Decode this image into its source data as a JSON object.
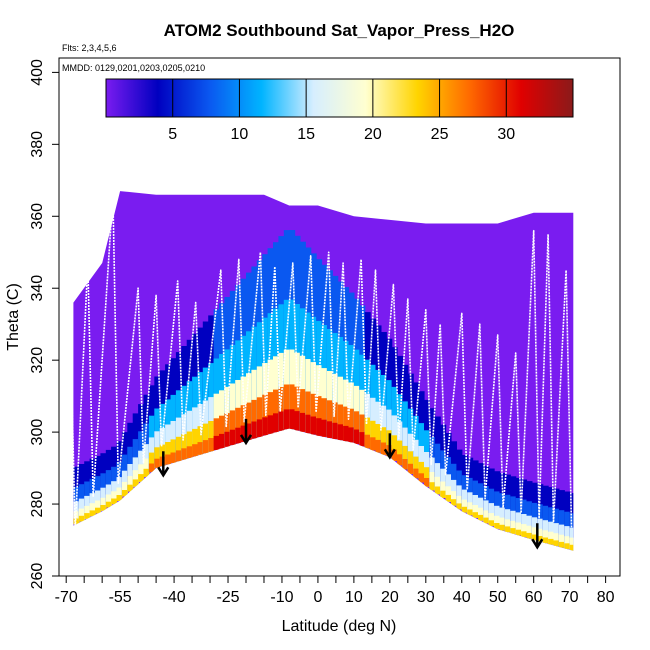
{
  "chart_data": {
    "type": "heatmap",
    "title": "ATOM2 Southbound Sat_Vapor_Press_H2O",
    "flights_label": "Flts: 2,3,4,5,6",
    "mmdd_label": "MMDD: 0129,0201,0203,0205,0210",
    "xlabel": "Latitude (deg N)",
    "ylabel": "Theta (C)",
    "xlim": [
      -72,
      84
    ],
    "ylim": [
      260,
      404
    ],
    "x_ticks": [
      -70,
      -55,
      -40,
      -25,
      -10,
      0,
      10,
      20,
      30,
      40,
      50,
      60,
      70,
      80
    ],
    "x_tick_labels": [
      "-70",
      "-55",
      "-40",
      "-25",
      "-10",
      "0",
      "10",
      "20",
      "30",
      "40",
      "50",
      "60",
      "70",
      "80"
    ],
    "y_ticks": [
      260,
      280,
      300,
      320,
      340,
      360,
      380,
      400
    ],
    "y_tick_labels": [
      "260",
      "280",
      "300",
      "320",
      "340",
      "360",
      "380",
      "400"
    ],
    "colorbar": {
      "range": [
        0,
        35
      ],
      "ticks": [
        5,
        10,
        15,
        20,
        25,
        30
      ],
      "tick_labels": [
        "5",
        "10",
        "15",
        "20",
        "25",
        "30"
      ],
      "colors": [
        "#7a1cf0",
        "#0000c0",
        "#0a58f0",
        "#00b4ff",
        "#d6eeff",
        "#ffffd0",
        "#ffd400",
        "#ff6a00",
        "#e00000",
        "#8b1a1a"
      ]
    },
    "coverage": {
      "lat": [
        -68,
        -60,
        -55,
        -45,
        -35,
        -25,
        -15,
        -8,
        0,
        10,
        20,
        30,
        40,
        50,
        60,
        71
      ],
      "theta_bottom": [
        274,
        278,
        281,
        290,
        293,
        296,
        299,
        301,
        299,
        297,
        293,
        285,
        278,
        273,
        270,
        267
      ],
      "theta_top": [
        336,
        347,
        367,
        366,
        366,
        366,
        366,
        363,
        363,
        360,
        359,
        358,
        358,
        358,
        361,
        361
      ]
    },
    "tropopause_arrows": [
      {
        "lat": -43,
        "theta": 288
      },
      {
        "lat": -20,
        "theta": 297
      },
      {
        "lat": 20,
        "theta": 293
      },
      {
        "lat": 61,
        "theta": 268
      }
    ]
  }
}
